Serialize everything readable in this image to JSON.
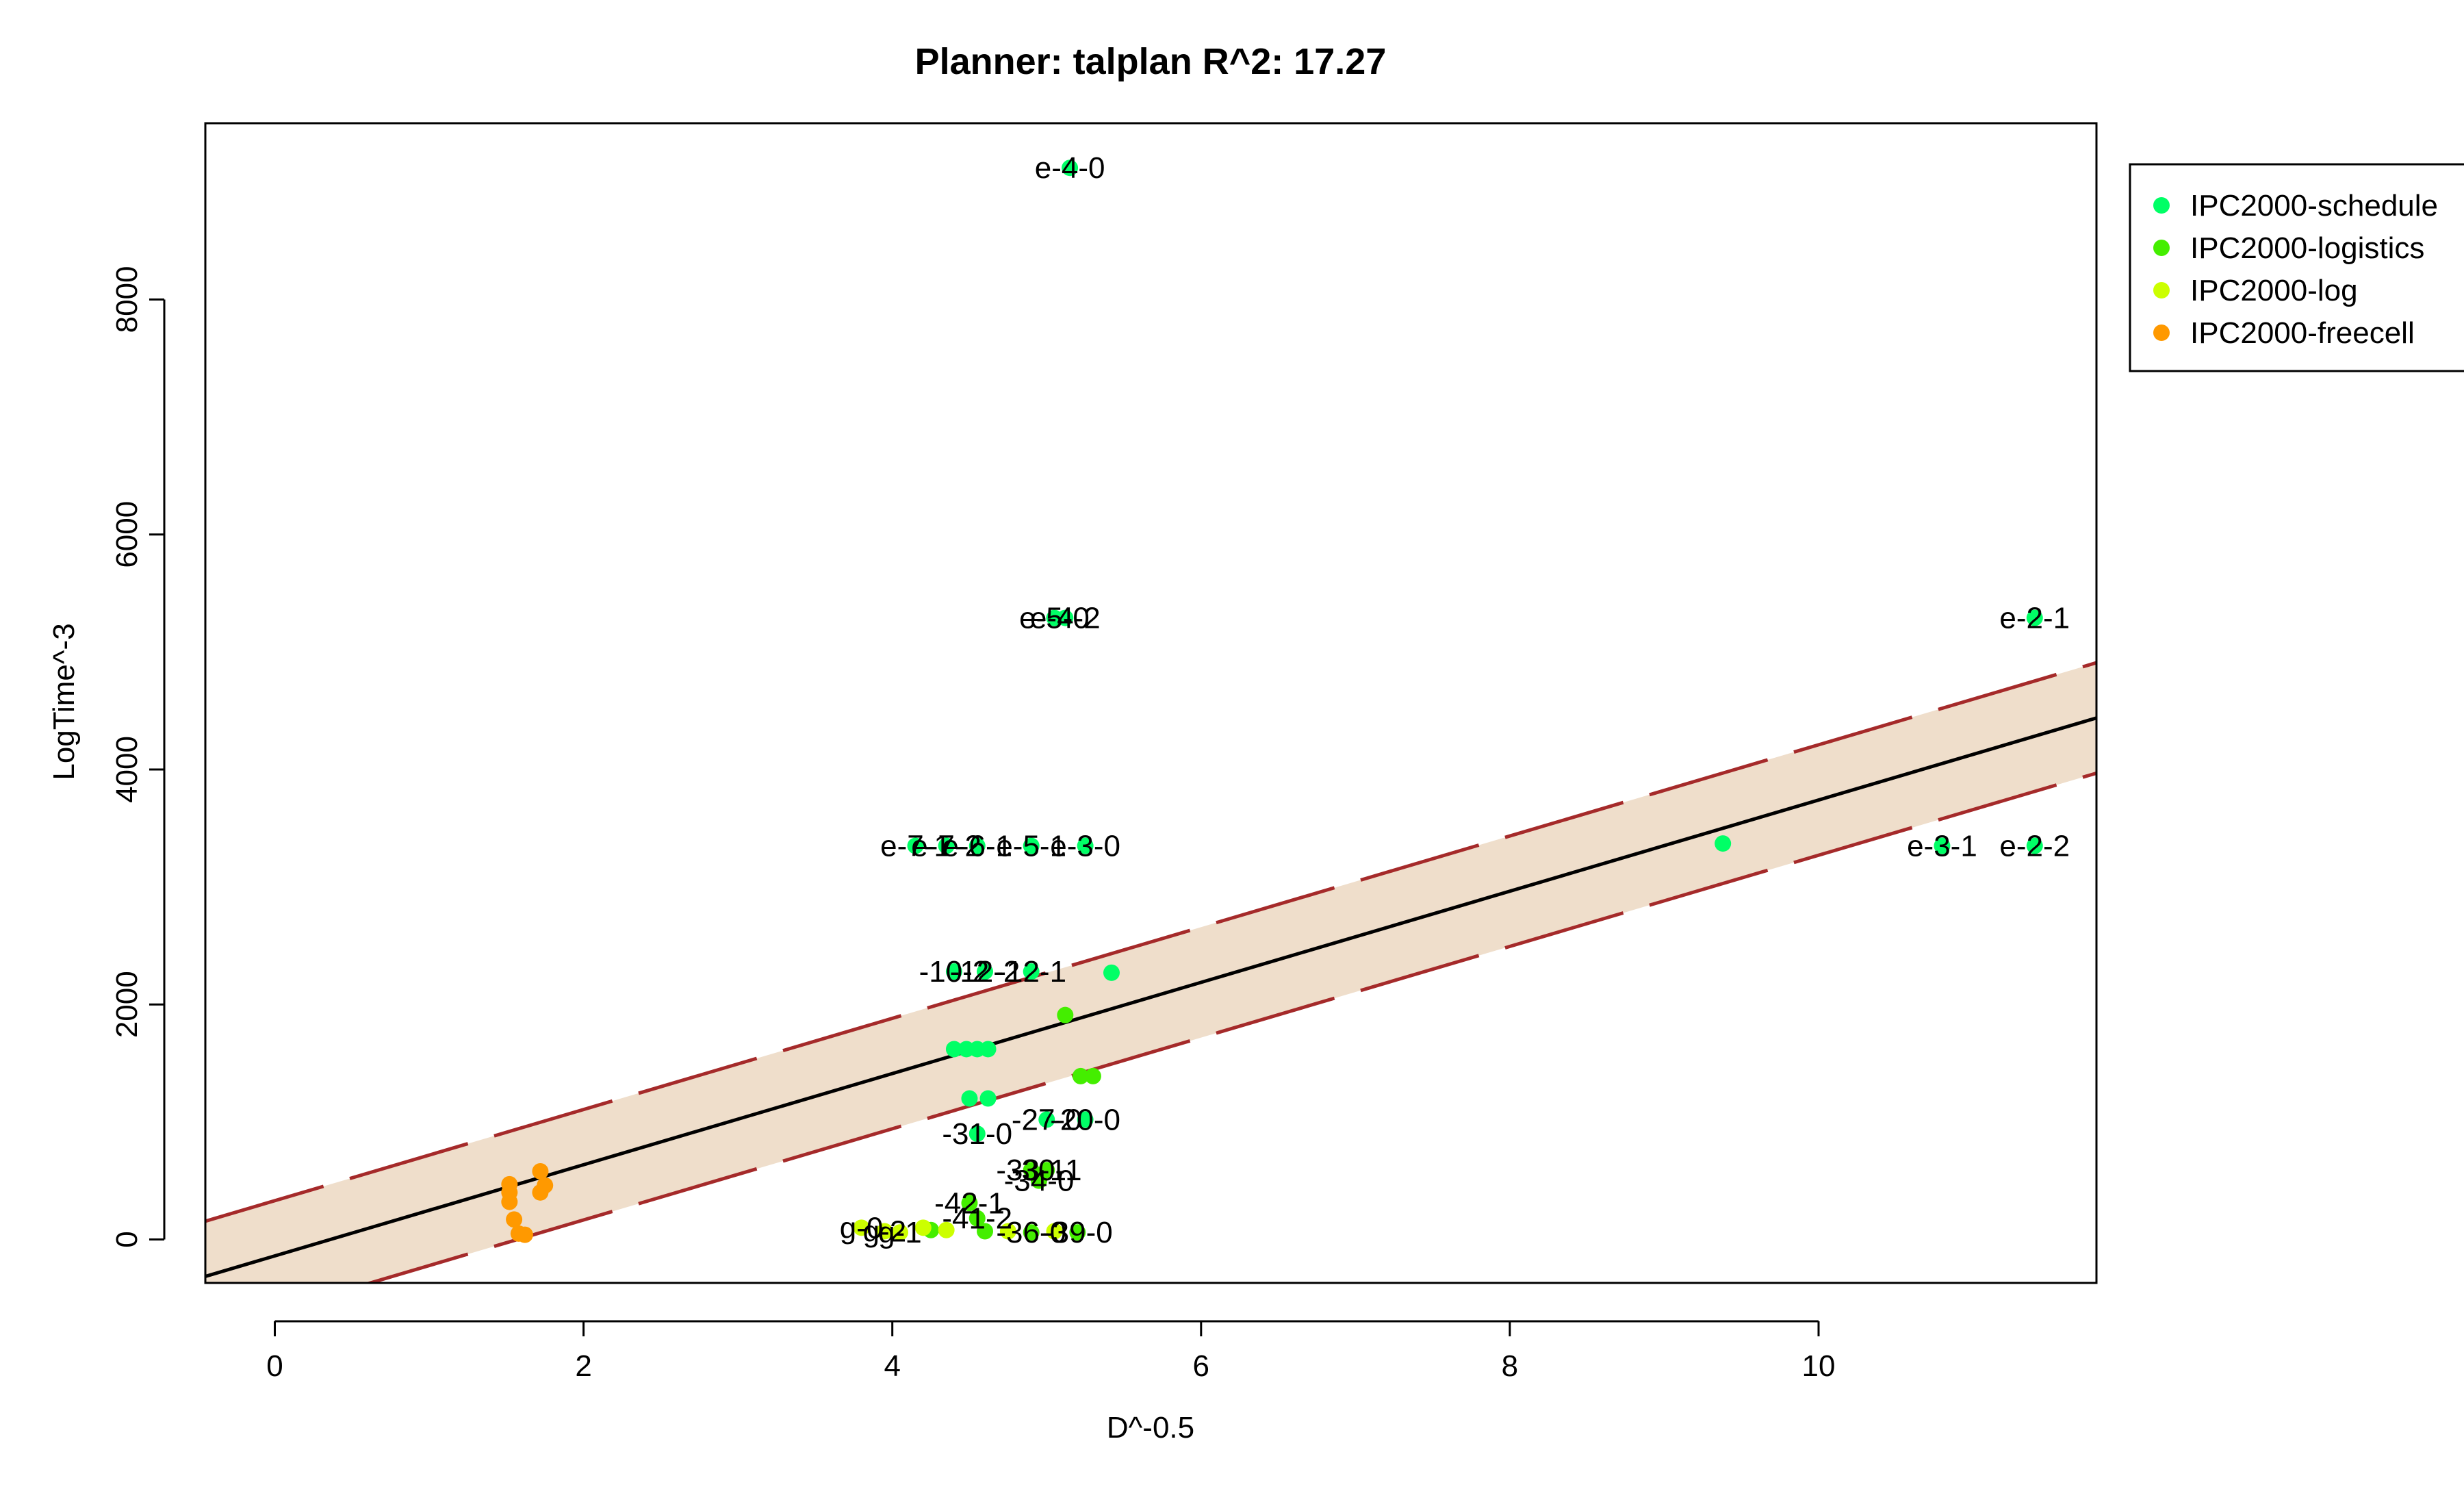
{
  "chart_data": {
    "type": "scatter",
    "title": "Planner: talplan R^2: 17.27",
    "xlabel": "D^-0.5",
    "ylabel": "LogTime^-3",
    "xlim": [
      -0.45,
      11.8
    ],
    "ylim": [
      -370,
      9500
    ],
    "xticks": [
      "0",
      "2",
      "4",
      "6",
      "8",
      "10"
    ],
    "xtick_values": [
      0,
      2,
      4,
      6,
      8,
      10
    ],
    "yticks": [
      "0",
      "2000",
      "4000",
      "6000",
      "8000"
    ],
    "ytick_values": [
      0,
      2000,
      4000,
      6000,
      8000
    ],
    "grid": false,
    "legend_position": "top-right",
    "series": [
      {
        "name": "IPC2000-schedule",
        "color": "#00ff66",
        "points": [
          {
            "x": 5.15,
            "y": 9120,
            "label": "e-4-0"
          },
          {
            "x": 5.05,
            "y": 5290,
            "label": "e-5-0"
          },
          {
            "x": 5.12,
            "y": 5290,
            "label": "e-4-2"
          },
          {
            "x": 11.4,
            "y": 5290,
            "label": "e-2-1"
          },
          {
            "x": 10.8,
            "y": 3350,
            "label": "e-3-1"
          },
          {
            "x": 11.4,
            "y": 3350,
            "label": "e-2-2"
          },
          {
            "x": 9.38,
            "y": 3370,
            "label": ""
          },
          {
            "x": 4.15,
            "y": 3350,
            "label": "e-7-1"
          },
          {
            "x": 4.35,
            "y": 3350,
            "label": "e-7-2"
          },
          {
            "x": 4.55,
            "y": 3350,
            "label": "e-6-1"
          },
          {
            "x": 4.9,
            "y": 3350,
            "label": "e-5-1"
          },
          {
            "x": 5.25,
            "y": 3350,
            "label": "e-3-0"
          },
          {
            "x": 4.4,
            "y": 2280,
            "label": "-10-2"
          },
          {
            "x": 4.6,
            "y": 2280,
            "label": "-12-2"
          },
          {
            "x": 4.9,
            "y": 2280,
            "label": "-12-1"
          },
          {
            "x": 5.42,
            "y": 2270,
            "label": ""
          },
          {
            "x": 4.4,
            "y": 1620,
            "label": ""
          },
          {
            "x": 4.48,
            "y": 1620,
            "label": ""
          },
          {
            "x": 4.55,
            "y": 1620,
            "label": ""
          },
          {
            "x": 4.62,
            "y": 1620,
            "label": ""
          },
          {
            "x": 4.5,
            "y": 1200,
            "label": ""
          },
          {
            "x": 4.62,
            "y": 1200,
            "label": ""
          },
          {
            "x": 4.55,
            "y": 900,
            "label": "-31-0"
          },
          {
            "x": 5.0,
            "y": 1020,
            "label": "-27-0"
          },
          {
            "x": 5.25,
            "y": 1020,
            "label": "-20-0"
          }
        ]
      },
      {
        "name": "IPC2000-logistics",
        "color": "#44ee00",
        "points": [
          {
            "x": 5.12,
            "y": 1910,
            "label": ""
          },
          {
            "x": 5.22,
            "y": 1390,
            "label": ""
          },
          {
            "x": 5.3,
            "y": 1390,
            "label": ""
          },
          {
            "x": 4.9,
            "y": 590,
            "label": "-33-1"
          },
          {
            "x": 5.0,
            "y": 590,
            "label": "-30-1"
          },
          {
            "x": 4.95,
            "y": 500,
            "label": "-34-0"
          },
          {
            "x": 4.5,
            "y": 310,
            "label": "-42-1"
          },
          {
            "x": 4.55,
            "y": 180,
            "label": "-41-2"
          },
          {
            "x": 4.25,
            "y": 80,
            "label": ""
          },
          {
            "x": 4.6,
            "y": 70,
            "label": ""
          },
          {
            "x": 4.9,
            "y": 60,
            "label": "-36-0"
          },
          {
            "x": 5.2,
            "y": 60,
            "label": "-39-0"
          }
        ]
      },
      {
        "name": "IPC2000-log",
        "color": "#ccff00",
        "points": [
          {
            "x": 3.8,
            "y": 100,
            "label": "g-0"
          },
          {
            "x": 3.95,
            "y": 70,
            "label": "g-2"
          },
          {
            "x": 4.05,
            "y": 60,
            "label": "g-1"
          },
          {
            "x": 4.2,
            "y": 100,
            "label": ""
          },
          {
            "x": 4.35,
            "y": 80,
            "label": ""
          },
          {
            "x": 4.75,
            "y": 70,
            "label": ""
          },
          {
            "x": 5.05,
            "y": 70,
            "label": ""
          }
        ]
      },
      {
        "name": "IPC2000-freecell",
        "color": "#ff9900",
        "points": [
          {
            "x": 1.52,
            "y": 470,
            "label": ""
          },
          {
            "x": 1.52,
            "y": 400,
            "label": ""
          },
          {
            "x": 1.52,
            "y": 320,
            "label": ""
          },
          {
            "x": 1.55,
            "y": 170,
            "label": ""
          },
          {
            "x": 1.58,
            "y": 50,
            "label": ""
          },
          {
            "x": 1.62,
            "y": 40,
            "label": ""
          },
          {
            "x": 1.72,
            "y": 580,
            "label": ""
          },
          {
            "x": 1.72,
            "y": 400,
            "label": ""
          },
          {
            "x": 1.75,
            "y": 460,
            "label": ""
          }
        ]
      }
    ],
    "fit_line": {
      "slope": 388.0,
      "intercept": -140,
      "band_offset": 470,
      "line_color": "#000000",
      "band_line_color": "#a52a2a",
      "band_fill": "#efdecb"
    }
  }
}
